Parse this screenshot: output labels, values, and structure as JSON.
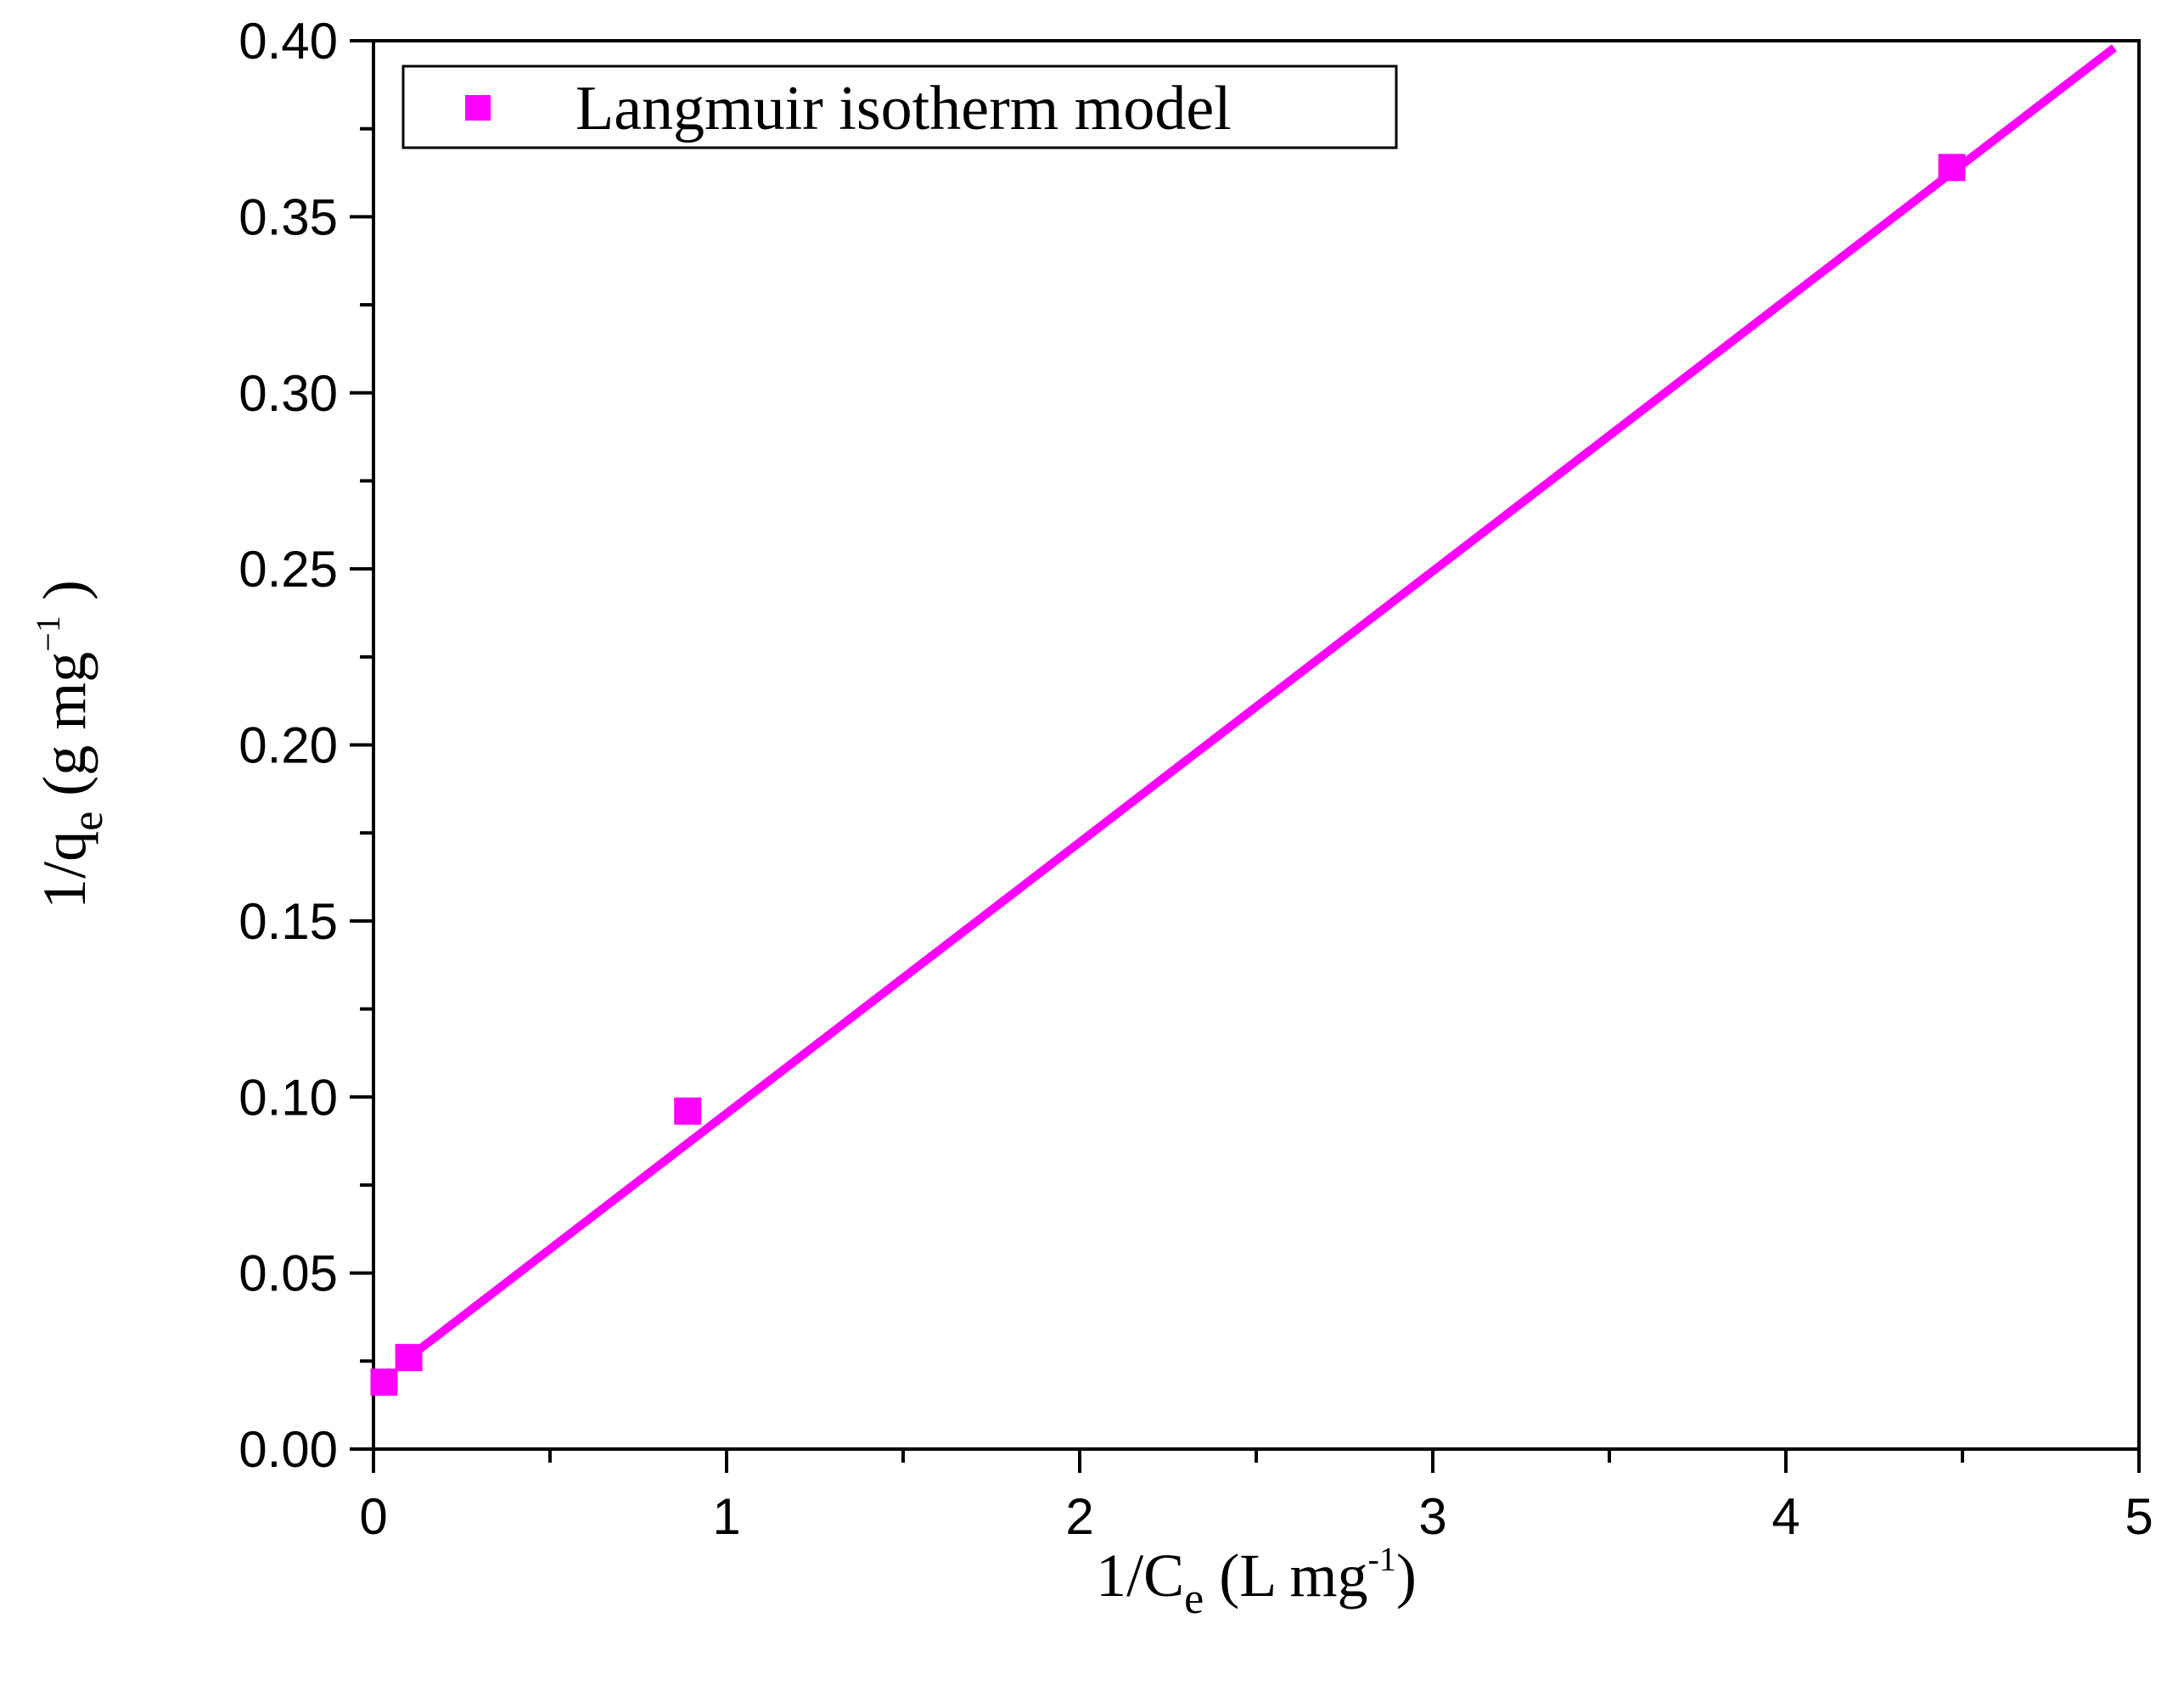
{
  "chart_data": {
    "type": "scatter",
    "title": "",
    "xlabel": {
      "main": "1/C",
      "sub": "e",
      "unit_open": " (L mg",
      "sup": "-1",
      "unit_close": ")"
    },
    "ylabel": {
      "main": "1/q",
      "sub": "e",
      "unit_open": " (g mg",
      "sup": "−1",
      "unit_close": " )"
    },
    "xlim": [
      0,
      5
    ],
    "ylim": [
      0,
      0.4
    ],
    "x_ticks": [
      "0",
      "1",
      "2",
      "3",
      "4",
      "5"
    ],
    "y_ticks": [
      "0.00",
      "0.05",
      "0.10",
      "0.15",
      "0.20",
      "0.25",
      "0.30",
      "0.35",
      "0.40"
    ],
    "grid": false,
    "legend": {
      "position": "top-left",
      "entries": [
        "Langmuir isotherm model"
      ]
    },
    "series": [
      {
        "name": "Langmuir isotherm model",
        "marker": "square",
        "color": "#ff00ff",
        "x": [
          0.03,
          0.1,
          0.89,
          4.47
        ],
        "y": [
          0.019,
          0.026,
          0.096,
          0.364
        ]
      }
    ],
    "fit_line": {
      "color": "#ff00ff",
      "x": [
        0.1,
        4.93
      ],
      "y": [
        0.026,
        0.398
      ]
    }
  }
}
